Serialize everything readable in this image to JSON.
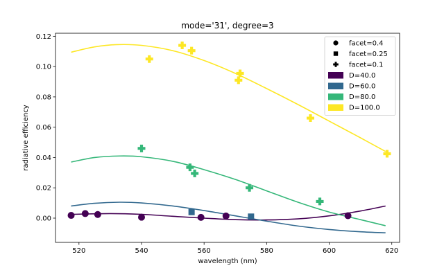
{
  "chart_data": {
    "type": "scatter",
    "title": "mode='31', degree=3",
    "xlabel": "wavelength (nm)",
    "ylabel": "radiative efficiency",
    "xlim": [
      512.5,
      622.5
    ],
    "ylim": [
      -0.016,
      0.122
    ],
    "xticks": [
      520,
      540,
      560,
      580,
      600,
      620
    ],
    "yticks": [
      0.0,
      0.02,
      0.04,
      0.06,
      0.08,
      0.1,
      0.12
    ],
    "ytick_labels": [
      "0.00",
      "0.02",
      "0.04",
      "0.06",
      "0.08",
      "0.10",
      "0.12"
    ],
    "grid": false,
    "legend_position": "top-right",
    "legend": [
      {
        "label": "facet=0.4",
        "marker": "circle"
      },
      {
        "label": "facet=0.25",
        "marker": "square"
      },
      {
        "label": "facet=0.1",
        "marker": "plus"
      },
      {
        "label": "D=40.0",
        "color": "#440154"
      },
      {
        "label": "D=60.0",
        "color": "#31688e"
      },
      {
        "label": "D=80.0",
        "color": "#35b779"
      },
      {
        "label": "D=100.0",
        "color": "#fde725"
      }
    ],
    "series": [
      {
        "name": "D=40.0",
        "color": "#440154",
        "marker": "circle",
        "points": [
          [
            517.5,
            0.0018
          ],
          [
            522,
            0.003
          ],
          [
            526,
            0.0024
          ],
          [
            540,
            0.0006
          ],
          [
            559,
            0.0005
          ],
          [
            567,
            0.0014
          ],
          [
            606,
            0.0016
          ]
        ],
        "fit": [
          [
            517.5,
            0.0025
          ],
          [
            530,
            0.003
          ],
          [
            540,
            0.0025
          ],
          [
            550,
            0.0012
          ],
          [
            560,
            0.0
          ],
          [
            570,
            -0.001
          ],
          [
            580,
            -0.0012
          ],
          [
            590,
            -0.0005
          ],
          [
            600,
            0.0015
          ],
          [
            610,
            0.0047
          ],
          [
            618,
            0.008
          ]
        ]
      },
      {
        "name": "D=60.0",
        "color": "#31688e",
        "marker": "square",
        "points": [
          [
            556,
            0.004
          ],
          [
            575,
            0.001
          ]
        ],
        "fit": [
          [
            517.5,
            0.008
          ],
          [
            525,
            0.0098
          ],
          [
            533,
            0.0105
          ],
          [
            540,
            0.01
          ],
          [
            550,
            0.008
          ],
          [
            560,
            0.005
          ],
          [
            570,
            0.0015
          ],
          [
            580,
            -0.002
          ],
          [
            590,
            -0.0052
          ],
          [
            600,
            -0.0075
          ],
          [
            610,
            -0.009
          ],
          [
            618,
            -0.0097
          ]
        ]
      },
      {
        "name": "D=80.0",
        "color": "#35b779",
        "marker": "plus",
        "points": [
          [
            540,
            0.046
          ],
          [
            555.5,
            0.0335
          ],
          [
            557,
            0.0295
          ],
          [
            574.5,
            0.02
          ],
          [
            597,
            0.011
          ]
        ],
        "fit": [
          [
            517.5,
            0.037
          ],
          [
            525,
            0.04
          ],
          [
            533,
            0.041
          ],
          [
            540,
            0.0405
          ],
          [
            550,
            0.0375
          ],
          [
            560,
            0.032
          ],
          [
            570,
            0.0255
          ],
          [
            580,
            0.018
          ],
          [
            590,
            0.0105
          ],
          [
            600,
            0.004
          ],
          [
            610,
            -0.001
          ],
          [
            618,
            -0.005
          ]
        ]
      },
      {
        "name": "D=100.0",
        "color": "#fde725",
        "marker": "plus",
        "points": [
          [
            542.5,
            0.105
          ],
          [
            553,
            0.114
          ],
          [
            556,
            0.1105
          ],
          [
            571,
            0.091
          ],
          [
            571.5,
            0.0955
          ],
          [
            594,
            0.066
          ],
          [
            618.5,
            0.0425
          ]
        ],
        "fit": [
          [
            517.5,
            0.1095
          ],
          [
            525,
            0.113
          ],
          [
            532,
            0.1145
          ],
          [
            540,
            0.114
          ],
          [
            550,
            0.1105
          ],
          [
            560,
            0.104
          ],
          [
            570,
            0.0955
          ],
          [
            580,
            0.0855
          ],
          [
            590,
            0.075
          ],
          [
            600,
            0.064
          ],
          [
            610,
            0.053
          ],
          [
            618,
            0.044
          ]
        ]
      }
    ]
  }
}
